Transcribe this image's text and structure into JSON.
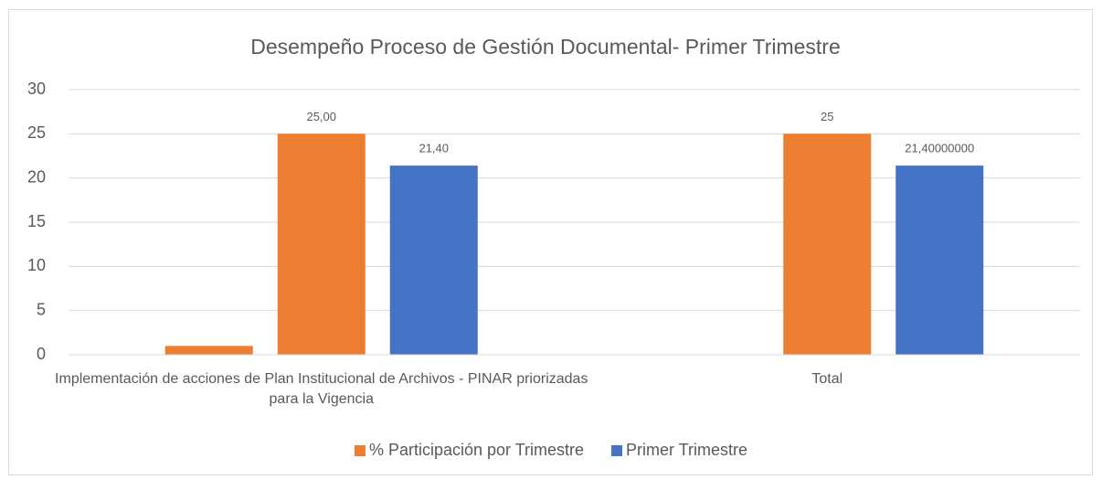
{
  "chart_data": {
    "type": "bar",
    "title": "Desempeño Proceso de Gestión Documental- Primer Trimestre",
    "categories": [
      "Implementación de acciones de Plan Institucional de Archivos - PINAR priorizadas para la Vigencia",
      "Total"
    ],
    "series": [
      {
        "color": "#ed7d31",
        "values": [
          1,
          null
        ]
      },
      {
        "name": "% Participación por Trimestre",
        "color": "#ed7d31",
        "values": [
          25,
          25
        ],
        "value_labels": [
          "25,00",
          "25"
        ]
      },
      {
        "name": "Primer Trimestre",
        "color": "#4472c4",
        "values": [
          21.4,
          21.4
        ],
        "value_labels": [
          "21,40",
          "21,40000000"
        ]
      }
    ],
    "ylim": [
      0,
      30
    ],
    "yticks": [
      0,
      5,
      10,
      15,
      20,
      25,
      30
    ],
    "grid": true,
    "legend": "bottom"
  }
}
